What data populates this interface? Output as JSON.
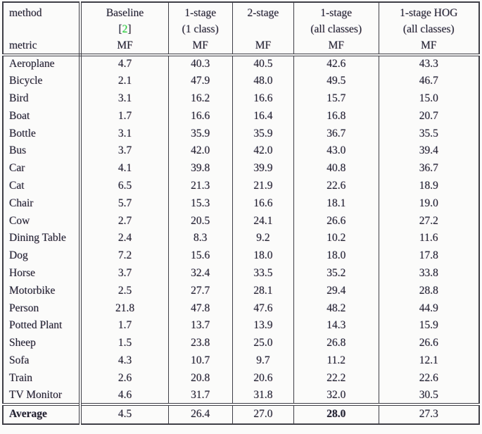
{
  "table": {
    "header": {
      "method_label": "method",
      "metric_label": "metric",
      "columns": [
        {
          "name": "Baseline",
          "cite_open": "[",
          "cite_num": "2",
          "cite_close": "]",
          "metric": "MF"
        },
        {
          "name": "1-stage",
          "sub": "(1 class)",
          "metric": "MF"
        },
        {
          "name": "2-stage",
          "sub": "",
          "metric": "MF"
        },
        {
          "name": "1-stage",
          "sub": "(all classes)",
          "metric": "MF"
        },
        {
          "name": "1-stage HOG",
          "sub": "(all classes)",
          "metric": "MF"
        }
      ]
    },
    "rows": [
      {
        "label": "Aeroplane",
        "values": [
          "4.7",
          "40.3",
          "40.5",
          "42.6",
          "43.3"
        ]
      },
      {
        "label": "Bicycle",
        "values": [
          "2.1",
          "47.9",
          "48.0",
          "49.5",
          "46.7"
        ]
      },
      {
        "label": "Bird",
        "values": [
          "3.1",
          "16.2",
          "16.6",
          "15.7",
          "15.0"
        ]
      },
      {
        "label": "Boat",
        "values": [
          "1.7",
          "16.6",
          "16.4",
          "16.8",
          "20.7"
        ]
      },
      {
        "label": "Bottle",
        "values": [
          "3.1",
          "35.9",
          "35.9",
          "36.7",
          "35.5"
        ]
      },
      {
        "label": "Bus",
        "values": [
          "3.7",
          "42.0",
          "42.0",
          "43.0",
          "39.4"
        ]
      },
      {
        "label": "Car",
        "values": [
          "4.1",
          "39.8",
          "39.9",
          "40.8",
          "36.7"
        ]
      },
      {
        "label": "Cat",
        "values": [
          "6.5",
          "21.3",
          "21.9",
          "22.6",
          "18.9"
        ]
      },
      {
        "label": "Chair",
        "values": [
          "5.7",
          "15.3",
          "16.6",
          "18.1",
          "19.0"
        ]
      },
      {
        "label": "Cow",
        "values": [
          "2.7",
          "20.5",
          "24.1",
          "26.6",
          "27.2"
        ]
      },
      {
        "label": "Dining Table",
        "values": [
          "2.4",
          "8.3",
          "9.2",
          "10.2",
          "11.6"
        ]
      },
      {
        "label": "Dog",
        "values": [
          "7.2",
          "15.6",
          "18.0",
          "18.0",
          "17.8"
        ]
      },
      {
        "label": "Horse",
        "values": [
          "3.7",
          "32.4",
          "33.5",
          "35.2",
          "33.8"
        ]
      },
      {
        "label": "Motorbike",
        "values": [
          "2.5",
          "27.7",
          "28.1",
          "29.4",
          "28.8"
        ]
      },
      {
        "label": "Person",
        "values": [
          "21.8",
          "47.8",
          "47.6",
          "48.2",
          "44.9"
        ]
      },
      {
        "label": "Potted Plant",
        "values": [
          "1.7",
          "13.7",
          "13.9",
          "14.3",
          "15.9"
        ]
      },
      {
        "label": "Sheep",
        "values": [
          "1.5",
          "23.8",
          "25.0",
          "26.8",
          "26.6"
        ]
      },
      {
        "label": "Sofa",
        "values": [
          "4.3",
          "10.7",
          "9.7",
          "11.2",
          "12.1"
        ]
      },
      {
        "label": "Train",
        "values": [
          "2.6",
          "20.8",
          "20.6",
          "22.2",
          "22.6"
        ]
      },
      {
        "label": "TV Monitor",
        "values": [
          "4.6",
          "31.7",
          "31.8",
          "32.0",
          "30.5"
        ]
      }
    ],
    "average": {
      "label": "Average",
      "values": [
        "4.5",
        "26.4",
        "27.0",
        "28.0",
        "27.3"
      ],
      "bold_value_index": 3
    }
  },
  "colors": {
    "text": "#20222e",
    "border": "#3e3e46",
    "background": "#fbfbfa",
    "citation_green": "#22dd33"
  }
}
